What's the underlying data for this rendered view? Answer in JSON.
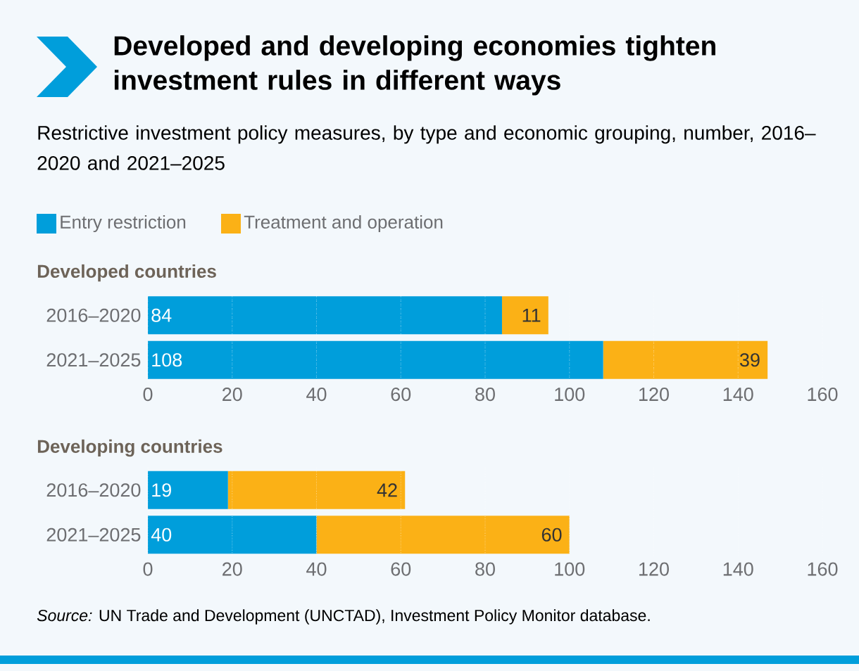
{
  "chart_data": [
    {
      "type": "bar",
      "orientation": "horizontal",
      "stacked": true,
      "title": "Developed and developing economies tighten investment rules in different ways",
      "subtitle": "Restrictive investment policy measures, by type and economic grouping, number, 2016–2020 and 2021–2025",
      "annotations": [
        "Developed countries"
      ],
      "categories": [
        "2016–2020",
        "2021–2025"
      ],
      "series": [
        {
          "name": "Entry restriction",
          "color": "#009edb",
          "values": [
            84,
            108
          ]
        },
        {
          "name": "Treatment and operation",
          "color": "#fbb116",
          "values": [
            11,
            39
          ]
        }
      ],
      "xlim": [
        0,
        160
      ],
      "xticks": [
        0,
        20,
        40,
        60,
        80,
        100,
        120,
        140,
        160
      ],
      "grid": "x",
      "legend": "top left",
      "data_labels": true
    },
    {
      "type": "bar",
      "orientation": "horizontal",
      "stacked": true,
      "annotations": [
        "Developing countries",
        "*Source:* UN Trade and Development (UNCTAD), Investment Policy Monitor database."
      ],
      "categories": [
        "2016–2020",
        "2021–2025"
      ],
      "series": [
        {
          "color": "#009edb",
          "values": [
            19,
            40
          ]
        },
        {
          "color": "#fbb116",
          "values": [
            42,
            60
          ]
        }
      ],
      "xlim": [
        0,
        160
      ],
      "xticks": [
        0,
        20,
        40,
        60,
        80,
        100,
        120,
        140,
        160
      ],
      "grid": "x",
      "data_labels": true
    }
  ]
}
